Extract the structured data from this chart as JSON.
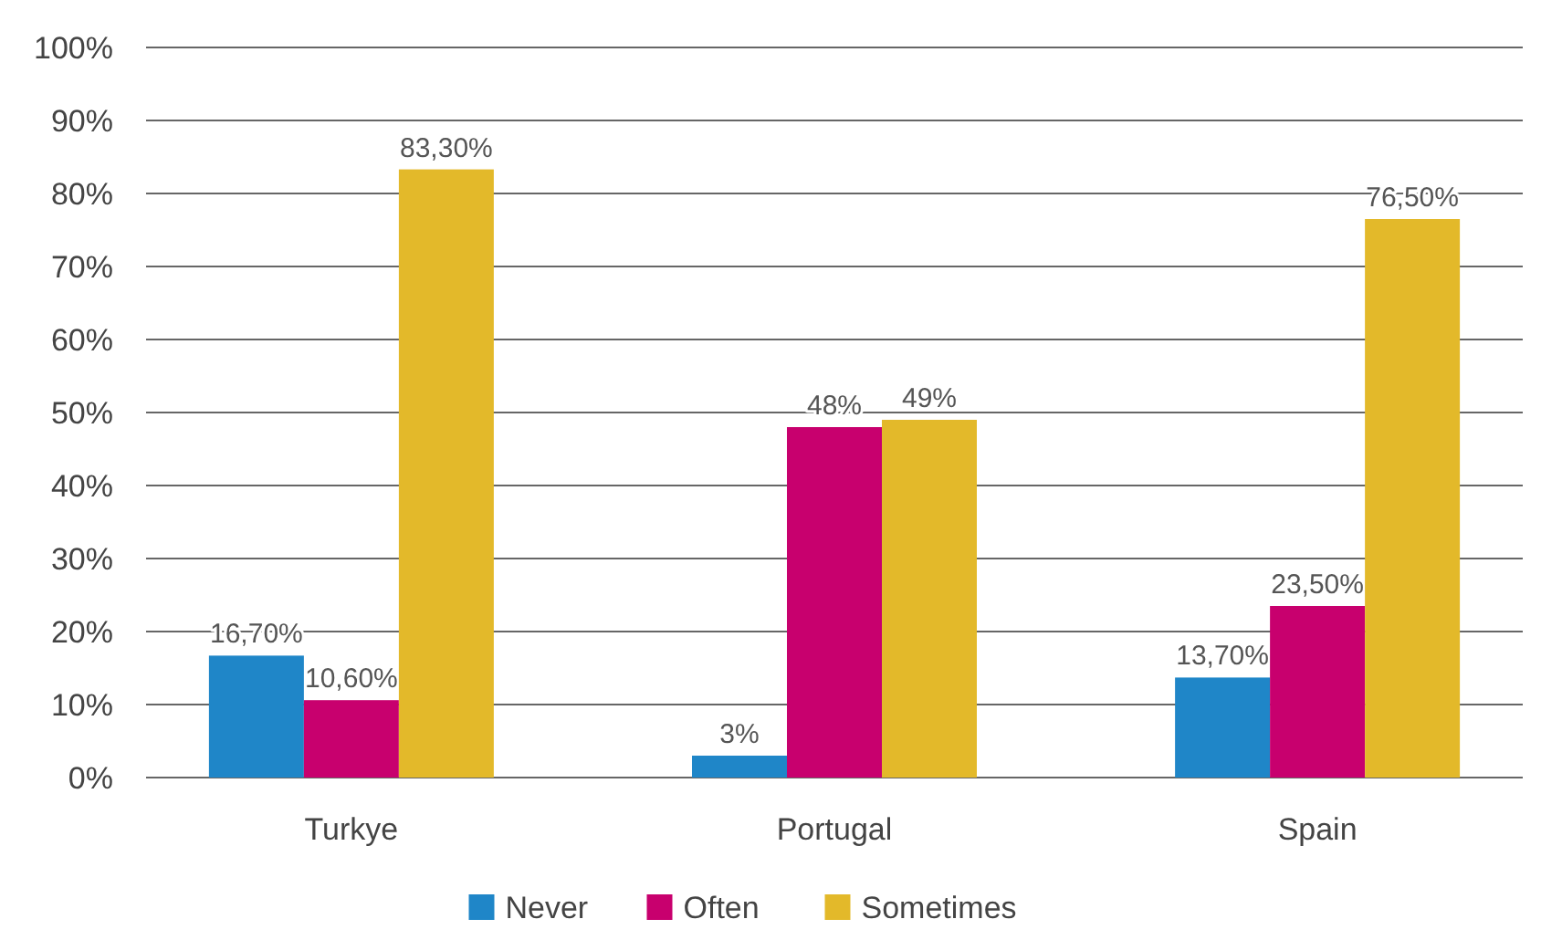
{
  "chart_data": {
    "type": "bar",
    "categories": [
      "Turkye",
      "Portugal",
      "Spain"
    ],
    "series": [
      {
        "name": "Never",
        "color": "#1f86c8",
        "values": [
          16.7,
          3,
          13.7
        ],
        "value_labels": [
          "16,70%",
          "3%",
          "13,70%"
        ]
      },
      {
        "name": "Often",
        "color": "#c8006e",
        "values": [
          10.6,
          48,
          23.5
        ],
        "value_labels": [
          "10,60%",
          "48%",
          "23,50%"
        ]
      },
      {
        "name": "Sometimes",
        "color": "#e3b92a",
        "values": [
          83.3,
          49,
          76.5
        ],
        "value_labels": [
          "83,30%",
          "49%",
          "76,50%"
        ]
      }
    ],
    "ylim": [
      0,
      100
    ],
    "yticks": [
      {
        "value": 0,
        "label": "0%"
      },
      {
        "value": 10,
        "label": "10%"
      },
      {
        "value": 20,
        "label": "20%"
      },
      {
        "value": 30,
        "label": "30%"
      },
      {
        "value": 40,
        "label": "40%"
      },
      {
        "value": 50,
        "label": "50%"
      },
      {
        "value": 60,
        "label": "60%"
      },
      {
        "value": 70,
        "label": "70%"
      },
      {
        "value": 80,
        "label": "80%"
      },
      {
        "value": 90,
        "label": "90%"
      },
      {
        "value": 100,
        "label": "100%"
      }
    ],
    "grid": "y",
    "legend": "bottom"
  }
}
